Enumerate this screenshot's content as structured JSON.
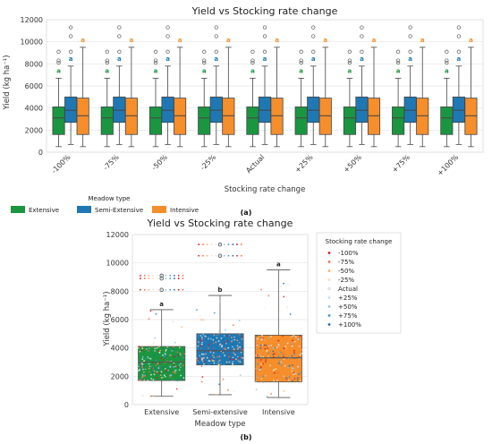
{
  "figure_labels": [
    "(a)",
    "(b)"
  ],
  "colors": {
    "extensive": "#1a9641",
    "semi": "#1f78b4",
    "intensive": "#f58e2b"
  },
  "chart_data": [
    {
      "type": "box",
      "title": "Yield vs Stocking rate change",
      "xlabel": "Stocking rate change",
      "ylabel": "Yield (kg ha⁻¹)",
      "ylim": [
        0,
        12000
      ],
      "yticks": [
        0,
        2000,
        4000,
        6000,
        8000,
        10000,
        12000
      ],
      "grid": true,
      "categories": [
        "-100%",
        "-75%",
        "-50%",
        "-25%",
        "Actual",
        "+25%",
        "+50%",
        "+75%",
        "+100%"
      ],
      "legend": {
        "title": "Meadow type",
        "placement": "bottom-left",
        "entries": [
          "Extensive",
          "Semi-Extensive",
          "Intensive"
        ]
      },
      "series": [
        {
          "name": "Extensive",
          "color": "#1a9641",
          "min": 500,
          "q1": 1600,
          "median": 3100,
          "q3": 4100,
          "max": 6700,
          "outliers": [
            8100,
            8300,
            9100
          ],
          "label": "a"
        },
        {
          "name": "Semi-Extensive",
          "color": "#1f78b4",
          "min": 700,
          "q1": 2700,
          "median": 3800,
          "q3": 5000,
          "max": 7800,
          "outliers": [
            9100,
            10500,
            11300
          ],
          "label": "a"
        },
        {
          "name": "Intensive",
          "color": "#f58e2b",
          "min": 500,
          "q1": 1600,
          "median": 3300,
          "q3": 4900,
          "max": 9500,
          "outliers": [],
          "label": "a"
        }
      ],
      "series_labels": [
        "a",
        "a",
        "a"
      ]
    },
    {
      "type": "box-strip",
      "title": "Yield vs Stocking rate change",
      "xlabel": "Meadow type",
      "ylabel": "Yield (kg ha⁻¹)",
      "ylim": [
        0,
        12000
      ],
      "yticks": [
        0,
        2000,
        4000,
        6000,
        8000,
        10000,
        12000
      ],
      "grid": true,
      "categories": [
        "Extensive",
        "Semi-extensive",
        "Intensive"
      ],
      "boxes": [
        {
          "min": 600,
          "q1": 1700,
          "median": 3000,
          "q3": 4100,
          "max": 6700,
          "outliers": [
            8100,
            8900,
            9100
          ],
          "label": "a"
        },
        {
          "min": 700,
          "q1": 2800,
          "median": 3800,
          "q3": 5000,
          "max": 7700,
          "outliers": [
            10500,
            11300
          ],
          "label": "b"
        },
        {
          "min": 500,
          "q1": 1600,
          "median": 3300,
          "q3": 4900,
          "max": 9500,
          "outliers": [],
          "label": "a"
        }
      ],
      "box_labels": [
        "a",
        "b",
        "a"
      ],
      "legend": {
        "title": "Stocking rate change",
        "placement": "right",
        "entries": [
          "-100%",
          "-75%",
          "-50%",
          "-25%",
          "Actual",
          "+25%",
          "+50%",
          "+75%",
          "+100%"
        ],
        "colors": [
          "#d7191c",
          "#f46d43",
          "#fdae61",
          "#fee0b6",
          "#eeeeee",
          "#c6dbef",
          "#92c5de",
          "#4393c3",
          "#2166ac"
        ]
      }
    }
  ]
}
